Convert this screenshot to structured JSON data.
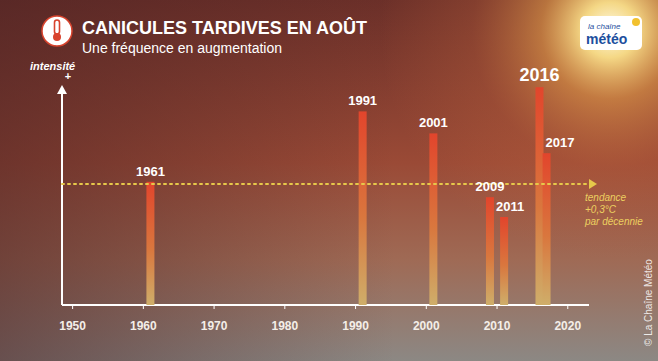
{
  "chart_data": {
    "type": "bar",
    "title": "CANICULES TARDIVES EN AOÛT",
    "subtitle": "Une fréquence en augmentation",
    "ylabel": "intensité",
    "ylabel_suffix": "+",
    "x": [
      1961,
      1991,
      2001,
      2009,
      2011,
      2016,
      2017
    ],
    "values": [
      56,
      88,
      78,
      49,
      40,
      99,
      69
    ],
    "color": "#e2452c",
    "xlim": [
      1948.5,
      2023
    ],
    "xticks": [
      1950,
      1960,
      1970,
      1980,
      1990,
      2000,
      2010,
      2020
    ],
    "ylim": [
      0,
      100
    ],
    "tick_labels": "x",
    "trend": {
      "value": 55,
      "label": [
        "tendance",
        "+0,3°C",
        "par décennie"
      ]
    },
    "logo": [
      "la chaîne",
      "météo"
    ],
    "credit": "© La Chaîne Météo"
  }
}
